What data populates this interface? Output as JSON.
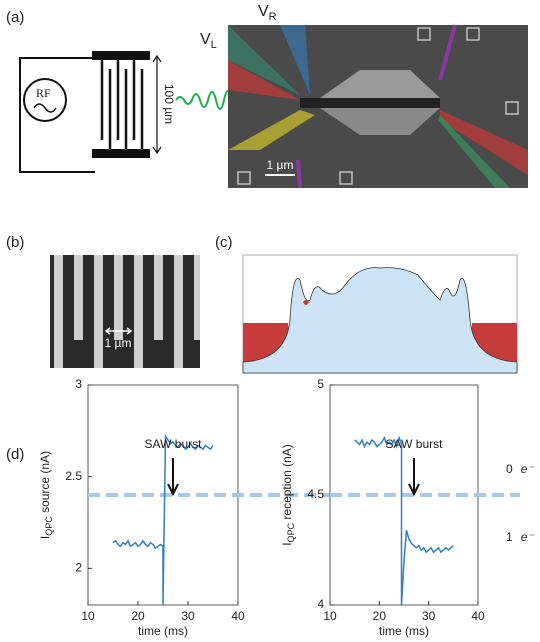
{
  "panels": {
    "a": {
      "label": "(a)",
      "vr": {
        "main": "V",
        "sub": "R"
      },
      "vl": {
        "main": "V",
        "sub": "L"
      },
      "source": "RF",
      "idt_size": "100 µm",
      "scale": "1 µm"
    },
    "b": {
      "label": "(b)",
      "scale": "1 µm"
    },
    "c": {
      "label": "(c)"
    },
    "d": {
      "label": "(d)",
      "states": [
        {
          "count": "0",
          "symbol": "e⁻"
        },
        {
          "count": "1",
          "symbol": "e⁻"
        }
      ]
    }
  },
  "chart_data": [
    {
      "type": "line",
      "annotation": "SAW burst",
      "ylabel": {
        "main": "I",
        "sub": "QPC",
        "rest": " source (nA)"
      },
      "xlabel": "time (ms)",
      "x": [
        15,
        15.5,
        16,
        16.5,
        17,
        17.5,
        18,
        18.5,
        19,
        19.5,
        20,
        20.5,
        21,
        21.5,
        22,
        22.5,
        23,
        23.5,
        24,
        24.5,
        25,
        25,
        25.5,
        26,
        26.5,
        27,
        27.5,
        28,
        28.5,
        29,
        29.5,
        30,
        30.5,
        31,
        31.5,
        32,
        32.5,
        33,
        33.5,
        34,
        34.5,
        35
      ],
      "series": [
        {
          "color": "#2f7fc1",
          "values": [
            2.14,
            2.15,
            2.13,
            2.12,
            2.14,
            2.13,
            2.15,
            2.12,
            2.13,
            2.14,
            2.12,
            2.13,
            2.15,
            2.13,
            2.12,
            2.14,
            2.13,
            2.11,
            2.12,
            2.13,
            2.12,
            1.8,
            2.72,
            2.7,
            2.68,
            2.69,
            2.67,
            2.66,
            2.68,
            2.67,
            2.65,
            2.66,
            2.68,
            2.66,
            2.65,
            2.67,
            2.66,
            2.65,
            2.67,
            2.66,
            2.65,
            2.67
          ]
        }
      ],
      "threshold": 2.4,
      "xlim": [
        10,
        40
      ],
      "xticks": [
        10,
        20,
        30,
        40
      ],
      "ylim": [
        1.8,
        3
      ],
      "yticks": [
        2,
        2.5,
        3
      ]
    },
    {
      "type": "line",
      "annotation": "SAW burst",
      "ylabel": {
        "main": "I",
        "sub": "QPC",
        "rest": " reception (nA)"
      },
      "xlabel": "time (ms)",
      "x": [
        15,
        15.5,
        16,
        16.5,
        17,
        17.5,
        18,
        18.5,
        19,
        19.5,
        20,
        20.5,
        21,
        21.5,
        22,
        22.5,
        23,
        23.5,
        24,
        24.5,
        24.5,
        25,
        25.5,
        26,
        26.5,
        27,
        27.5,
        28,
        28.5,
        29,
        29.5,
        30,
        30.5,
        31,
        31.5,
        32,
        32.5,
        33,
        33.5,
        34,
        34.5,
        35
      ],
      "series": [
        {
          "color": "#2f7fc1",
          "values": [
            4.75,
            4.74,
            4.73,
            4.75,
            4.72,
            4.74,
            4.73,
            4.75,
            4.74,
            4.72,
            4.73,
            4.74,
            4.76,
            4.73,
            4.74,
            4.73,
            4.75,
            4.72,
            4.76,
            4.73,
            4.0,
            4.2,
            4.34,
            4.3,
            4.28,
            4.27,
            4.26,
            4.27,
            4.25,
            4.26,
            4.24,
            4.25,
            4.26,
            4.24,
            4.25,
            4.26,
            4.24,
            4.25,
            4.26,
            4.25,
            4.26,
            4.27
          ]
        }
      ],
      "threshold": 4.5,
      "xlim": [
        10,
        40
      ],
      "xticks": [
        10,
        20,
        30,
        40
      ],
      "ylim": [
        4,
        5
      ],
      "yticks": [
        4,
        4.5,
        5
      ]
    }
  ]
}
